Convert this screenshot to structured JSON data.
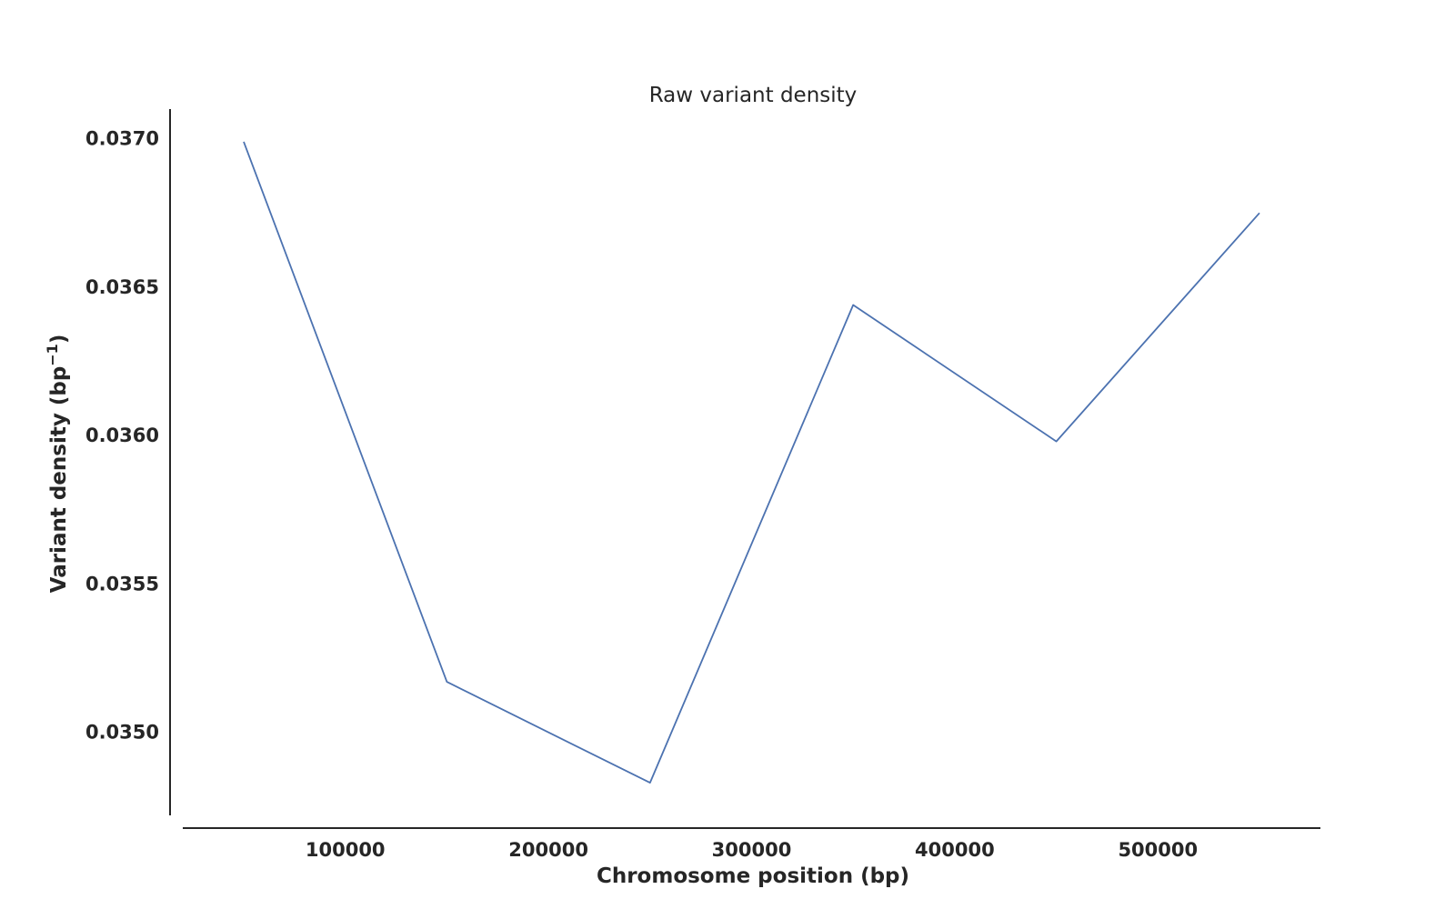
{
  "chart_data": {
    "type": "line",
    "title": "Raw variant density",
    "xlabel": "Chromosome position (bp)",
    "ylabel_main": "Variant density (bp",
    "ylabel_sup": "−1",
    "ylabel_end": ")",
    "x": [
      50000,
      150000,
      250000,
      350000,
      450000,
      550000
    ],
    "series": [
      {
        "values": [
          0.03699,
          0.03517,
          0.03483,
          0.03644,
          0.03598,
          0.03675
        ],
        "color": "#4c72b0"
      }
    ],
    "xlim": [
      20000,
      580000
    ],
    "ylim": [
      0.03472,
      0.0371
    ],
    "xticks": [
      100000,
      200000,
      300000,
      400000,
      500000
    ],
    "xtick_labels": [
      "100000",
      "200000",
      "300000",
      "400000",
      "500000"
    ],
    "yticks": [
      0.035,
      0.0355,
      0.036,
      0.0365,
      0.037
    ],
    "ytick_labels": [
      "0.0350",
      "0.0355",
      "0.0360",
      "0.0365",
      "0.0370"
    ],
    "grid": false,
    "legend": "none"
  }
}
